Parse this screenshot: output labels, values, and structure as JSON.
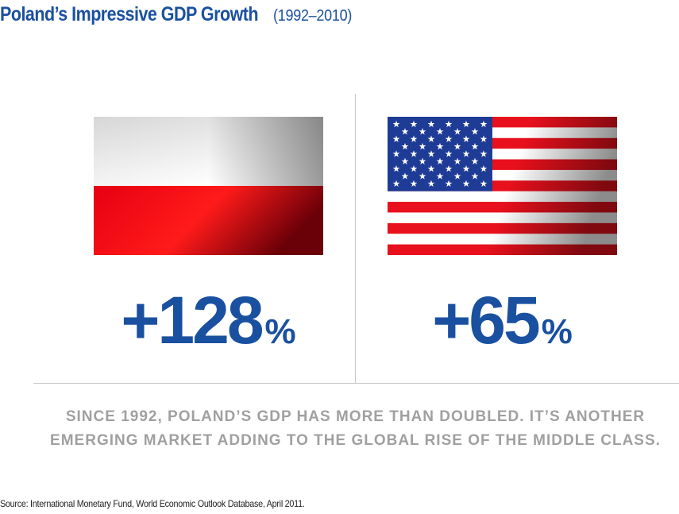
{
  "header": {
    "title": "Poland’s Impressive GDP Growth",
    "years": "(1992–2010)"
  },
  "comparison": {
    "poland": {
      "flag": "poland-flag",
      "value": "+128",
      "unit": "%"
    },
    "usa": {
      "flag": "usa-flag",
      "value": "+65",
      "unit": "%"
    }
  },
  "caption": {
    "line1": "SINCE 1992, POLAND’S GDP HAS MORE THAN DOUBLED. IT’S ANOTHER",
    "line2": "EMERGING MARKET ADDING TO THE GLOBAL RISE OF THE MIDDLE CLASS."
  },
  "footer": {
    "source": "Source: International Monetary Fund, World Economic Outlook Database, April 2011."
  },
  "colors": {
    "accent_blue": "#1a50a0",
    "caption_gray": "#a0a0a0",
    "flag_red": "#e8101c",
    "flag_blue": "#1e3c96"
  }
}
